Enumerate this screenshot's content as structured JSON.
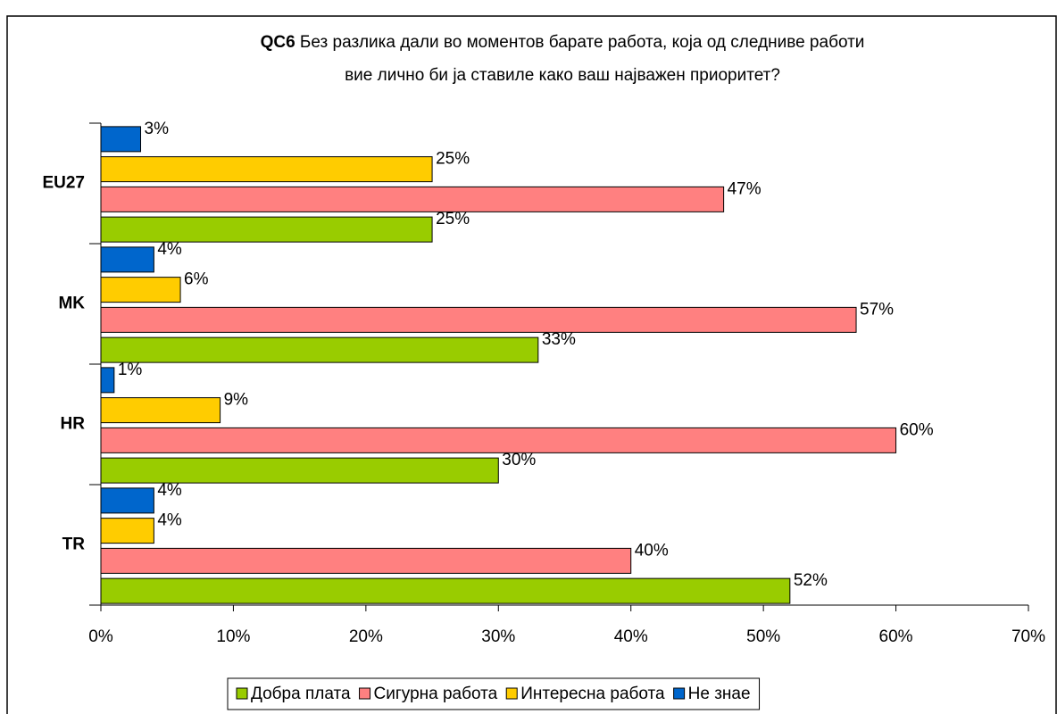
{
  "chart_data": {
    "type": "bar",
    "orientation": "horizontal",
    "title": {
      "code": "QC6",
      "lines": [
        "Без разлика дали во моментов барате работа, која од следниве работи",
        "вие лично би ја ставиле како ваш најважен приоритет?"
      ]
    },
    "categories": [
      "EU27",
      "MK",
      "HR",
      "TR"
    ],
    "series": [
      {
        "name": "Добра плата",
        "color": "#99cc00",
        "values": [
          25,
          33,
          30,
          52
        ],
        "value_labels": [
          "25%",
          "33%",
          "30%",
          "52%"
        ]
      },
      {
        "name": "Сигурна работа",
        "color": "#ff8080",
        "values": [
          47,
          57,
          60,
          40
        ],
        "value_labels": [
          "47%",
          "57%",
          "60%",
          "40%"
        ]
      },
      {
        "name": "Интересна работа",
        "color": "#ffcc00",
        "values": [
          25,
          6,
          9,
          4
        ],
        "value_labels": [
          "25%",
          "6%",
          "9%",
          "4%"
        ]
      },
      {
        "name": "Не знае",
        "color": "#0066cc",
        "values": [
          3,
          4,
          1,
          4
        ],
        "value_labels": [
          "3%",
          "4%",
          "1%",
          "4%"
        ]
      }
    ],
    "xlim": [
      0,
      70
    ],
    "xticks": [
      {
        "value": 0,
        "label": "0%"
      },
      {
        "value": 10,
        "label": "10%"
      },
      {
        "value": 20,
        "label": "20%"
      },
      {
        "value": 30,
        "label": "30%"
      },
      {
        "value": 40,
        "label": "40%"
      },
      {
        "value": 50,
        "label": "50%"
      },
      {
        "value": 60,
        "label": "60%"
      },
      {
        "value": 70,
        "label": "70%"
      }
    ],
    "legend": "bottom"
  }
}
